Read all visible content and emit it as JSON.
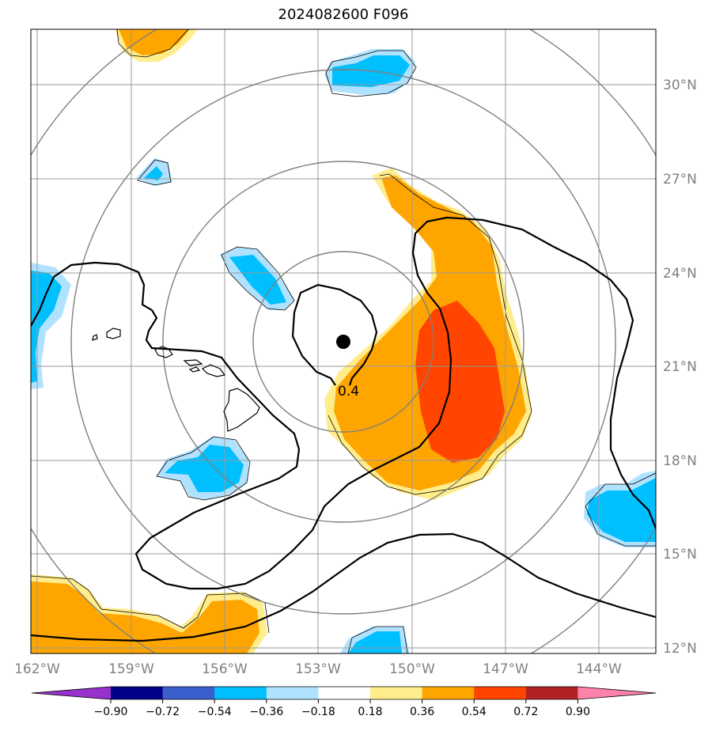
{
  "title": "2024082600 F096",
  "lat_labels": [
    "30°N",
    "27°N",
    "24°N",
    "21°N",
    "18°N",
    "15°N",
    "12°N"
  ],
  "lon_labels": [
    "162°W",
    "159°W",
    "156°W",
    "153°W",
    "150°W",
    "147°W",
    "144°W"
  ],
  "contour_label": "0.4",
  "colorbar": {
    "ticks": [
      "−0.90",
      "−0.72",
      "−0.54",
      "−0.36",
      "−0.18",
      "0.18",
      "0.36",
      "0.54",
      "0.72",
      "0.90"
    ],
    "colors": [
      "#9932CC",
      "#00008B",
      "#3A5FCD",
      "#00BFFF",
      "#B0E2FF",
      "#FFFFFF",
      "#FFEC8B",
      "#FFA500",
      "#FF4500",
      "#B22222",
      "#FF82AB"
    ]
  },
  "colors": {
    "orange": "#FFA500",
    "red_orange": "#FF4500",
    "light_yellow": "#FFEC8B",
    "deep_sky_blue": "#00BFFF",
    "light_blue": "#B0E2FF",
    "grid": "#999999",
    "range_ring": "#808080"
  }
}
